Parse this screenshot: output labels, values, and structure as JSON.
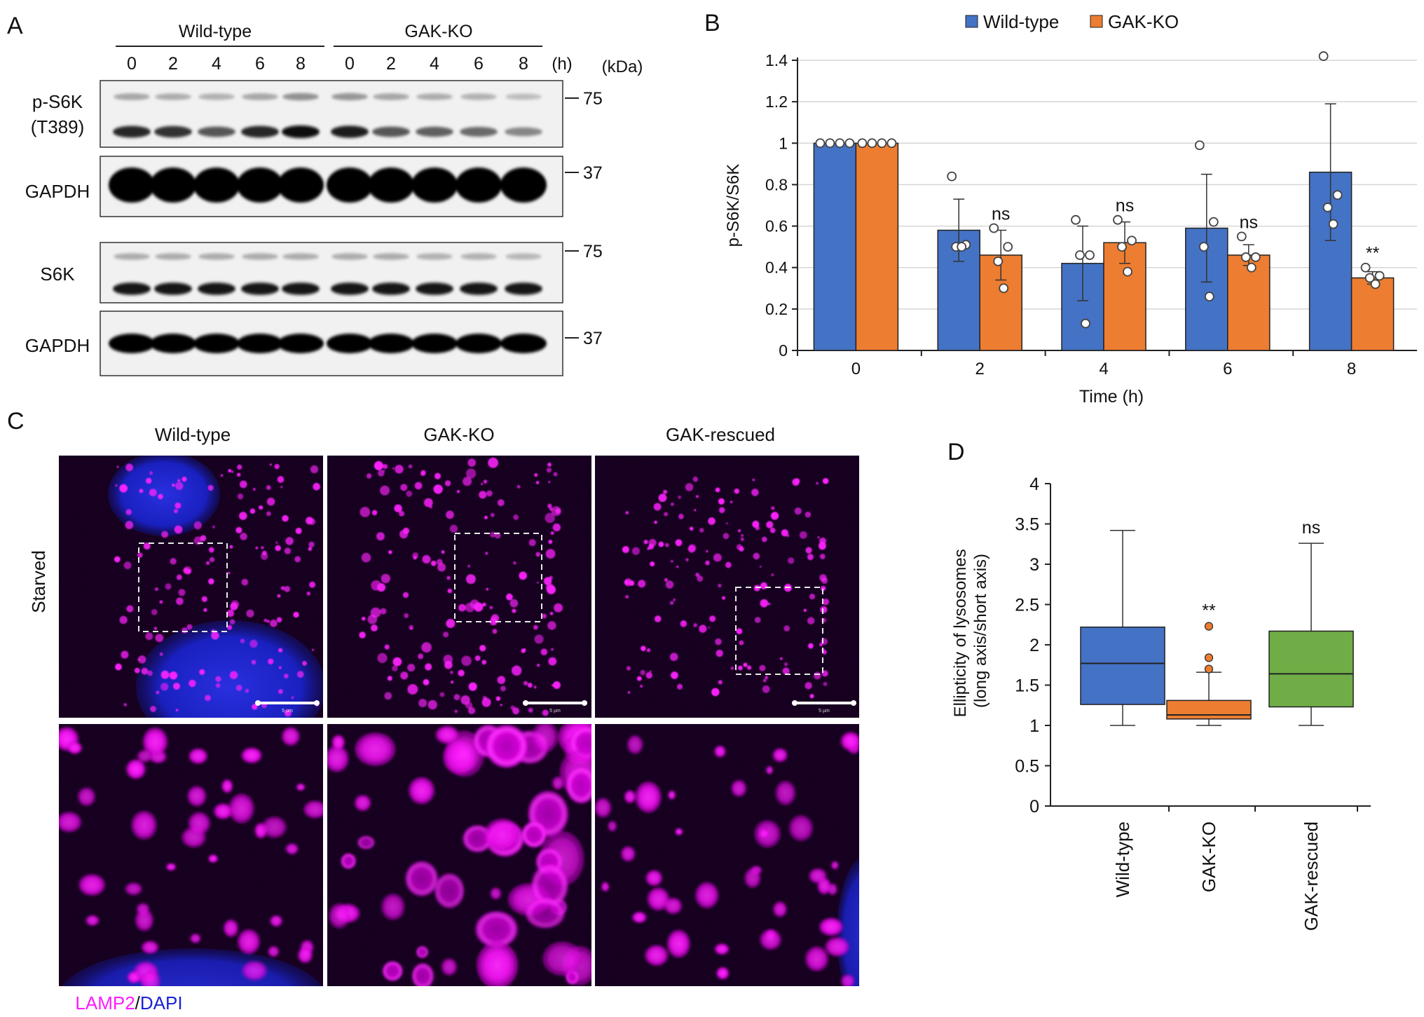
{
  "panel_a": {
    "letter": "A",
    "group_labels": [
      "Wild-type",
      "GAK-KO"
    ],
    "time_labels": [
      "0",
      "2",
      "4",
      "6",
      "8",
      "0",
      "2",
      "4",
      "6",
      "8"
    ],
    "time_unit": "(h)",
    "mw_unit": "(kDa)",
    "blots": [
      {
        "label_lines": [
          "p-S6K",
          "(T389)"
        ],
        "marker": "75",
        "upper_band": [
          0.45,
          0.4,
          0.35,
          0.45,
          0.65,
          0.6,
          0.45,
          0.4,
          0.35,
          0.25
        ],
        "lower_band": [
          0.85,
          0.8,
          0.6,
          0.85,
          1.0,
          0.9,
          0.6,
          0.55,
          0.5,
          0.35
        ]
      },
      {
        "label_lines": [
          "GAPDH"
        ],
        "marker": "37",
        "band": [
          1,
          1,
          1,
          1,
          1,
          1,
          1,
          1,
          1,
          1
        ]
      },
      {
        "label_lines": [
          "S6K"
        ],
        "marker": "75",
        "upper_band": [
          0.4,
          0.4,
          0.4,
          0.4,
          0.4,
          0.4,
          0.4,
          0.35,
          0.35,
          0.3
        ],
        "lower_band": [
          0.95,
          0.95,
          0.95,
          0.95,
          0.95,
          0.95,
          0.95,
          0.95,
          0.95,
          0.95
        ]
      },
      {
        "label_lines": [
          "GAPDH"
        ],
        "marker": "37",
        "band": [
          1,
          1,
          1,
          1,
          1,
          1,
          1,
          1,
          1,
          1
        ]
      }
    ]
  },
  "panel_b": {
    "letter": "B",
    "chart_data": {
      "type": "bar",
      "categories": [
        "0",
        "2",
        "4",
        "6",
        "8"
      ],
      "xlabel": "Time (h)",
      "ylabel": "p-S6K/S6K",
      "ylim": [
        0,
        1.4
      ],
      "yticks": [
        "0",
        "0.2",
        "0.4",
        "0.6",
        "0.8",
        "1",
        "1.2",
        "1.4"
      ],
      "grid": true,
      "legend_position": "top",
      "series": [
        {
          "name": "Wild-type",
          "color": "#4472c4",
          "values": [
            1.0,
            0.58,
            0.42,
            0.59,
            0.86
          ],
          "error": [
            0.0,
            0.15,
            0.18,
            0.26,
            0.33
          ],
          "points": [
            [
              1,
              1,
              1,
              1
            ],
            [
              0.84,
              0.51,
              0.5,
              0.5
            ],
            [
              0.63,
              0.46,
              0.46,
              0.13
            ],
            [
              0.99,
              0.62,
              0.5,
              0.26
            ],
            [
              1.42,
              0.75,
              0.69,
              0.61
            ]
          ]
        },
        {
          "name": "GAK-KO",
          "color": "#ed7d31",
          "values": [
            1.0,
            0.46,
            0.52,
            0.46,
            0.35
          ],
          "error": [
            0.0,
            0.12,
            0.1,
            0.05,
            0.03
          ],
          "points": [
            [
              1,
              1,
              1,
              1
            ],
            [
              0.59,
              0.5,
              0.43,
              0.3
            ],
            [
              0.63,
              0.53,
              0.5,
              0.38
            ],
            [
              0.55,
              0.45,
              0.45,
              0.4
            ],
            [
              0.4,
              0.36,
              0.35,
              0.32
            ]
          ]
        }
      ],
      "annotations": [
        "",
        "ns",
        "ns",
        "ns",
        "**"
      ]
    }
  },
  "panel_c": {
    "letter": "C",
    "column_labels": [
      "Wild-type",
      "GAK-KO",
      "GAK-rescued"
    ],
    "row_label": "Starved",
    "scale_bar_text": "5 µm",
    "stain_label": {
      "marker": "LAMP2",
      "separator": "/",
      "counterstain": "DAPI"
    },
    "colors": {
      "lamp2": "#ff1aff",
      "dapi": "#1a22d8",
      "background": "#05000c"
    }
  },
  "panel_d": {
    "letter": "D",
    "chart_data": {
      "type": "box",
      "categories": [
        "Wild-type",
        "GAK-KO",
        "GAK-rescued"
      ],
      "ylabel_lines": [
        "Ellipticity of lysosomes",
        "(long axis/short axis)"
      ],
      "ylim": [
        0,
        4
      ],
      "yticks": [
        "0",
        "0.5",
        "1",
        "1.5",
        "2",
        "2.5",
        "3",
        "3.5",
        "4"
      ],
      "boxes": [
        {
          "name": "Wild-type",
          "color": "#4472c4",
          "min": 1.0,
          "q1": 1.26,
          "median": 1.77,
          "q3": 2.22,
          "max": 3.42,
          "outliers": []
        },
        {
          "name": "GAK-KO",
          "color": "#ed7d31",
          "min": 1.0,
          "q1": 1.08,
          "median": 1.13,
          "q3": 1.31,
          "max": 1.66,
          "outliers": [
            1.7,
            1.84,
            2.23
          ]
        },
        {
          "name": "GAK-rescued",
          "color": "#70ad47",
          "min": 1.0,
          "q1": 1.23,
          "median": 1.64,
          "q3": 2.17,
          "max": 3.26,
          "outliers": []
        }
      ],
      "annotations": [
        "",
        "**",
        "ns"
      ]
    }
  }
}
